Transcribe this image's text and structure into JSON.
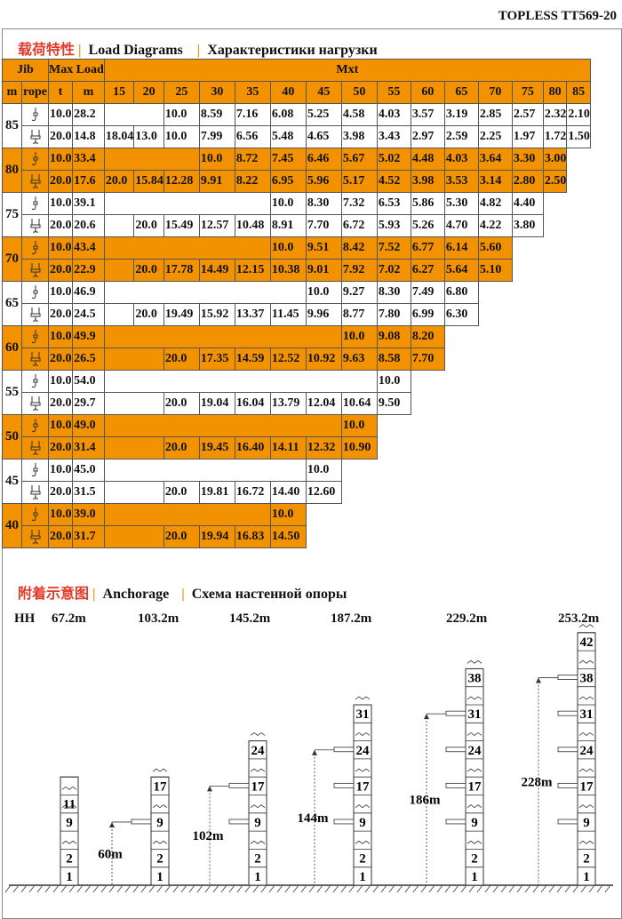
{
  "model": "TOPLESS TT569-20",
  "load": {
    "title_cn": "载荷特性",
    "title_en": "Load Diagrams",
    "title_ru": "Характеристики нагрузки"
  },
  "table": {
    "h_jib": "Jib",
    "h_maxload": "Max Load",
    "h_mxt": "Mxt",
    "h_m": "m",
    "h_rope": "rope",
    "h_t": "t",
    "h_m2": "m",
    "radii": [
      "15",
      "20",
      "25",
      "30",
      "35",
      "40",
      "45",
      "50",
      "55",
      "60",
      "65",
      "70",
      "75",
      "80",
      "85"
    ],
    "groups": [
      {
        "jib": "85",
        "rows": [
          {
            "t": "10.0",
            "m": "28.2",
            "vals": [
              "",
              "",
              "10.0",
              "8.59",
              "7.16",
              "6.08",
              "5.25",
              "4.58",
              "4.03",
              "3.57",
              "3.19",
              "2.85",
              "2.57",
              "2.32",
              "2.10"
            ]
          },
          {
            "t": "20.0",
            "m": "14.8",
            "vals": [
              "18.04",
              "13.0",
              "10.0",
              "7.99",
              "6.56",
              "5.48",
              "4.65",
              "3.98",
              "3.43",
              "2.97",
              "2.59",
              "2.25",
              "1.97",
              "1.72",
              "1.50"
            ]
          }
        ]
      },
      {
        "jib": "80",
        "rows": [
          {
            "t": "10.0",
            "m": "33.4",
            "vals": [
              "",
              "",
              "",
              "10.0",
              "8.72",
              "7.45",
              "6.46",
              "5.67",
              "5.02",
              "4.48",
              "4.03",
              "3.64",
              "3.30",
              "3.00"
            ]
          },
          {
            "t": "20.0",
            "m": "17.6",
            "vals": [
              "20.0",
              "15.84",
              "12.28",
              "9.91",
              "8.22",
              "6.95",
              "5.96",
              "5.17",
              "4.52",
              "3.98",
              "3.53",
              "3.14",
              "2.80",
              "2.50"
            ]
          }
        ]
      },
      {
        "jib": "75",
        "rows": [
          {
            "t": "10.0",
            "m": "39.1",
            "vals": [
              "",
              "",
              "",
              "",
              "",
              "10.0",
              "8.30",
              "7.32",
              "6.53",
              "5.86",
              "5.30",
              "4.82",
              "4.40"
            ]
          },
          {
            "t": "20.0",
            "m": "20.6",
            "vals": [
              "",
              "20.0",
              "15.49",
              "12.57",
              "10.48",
              "8.91",
              "7.70",
              "6.72",
              "5.93",
              "5.26",
              "4.70",
              "4.22",
              "3.80"
            ]
          }
        ]
      },
      {
        "jib": "70",
        "rows": [
          {
            "t": "10.0",
            "m": "43.4",
            "vals": [
              "",
              "",
              "",
              "",
              "",
              "10.0",
              "9.51",
              "8.42",
              "7.52",
              "6.77",
              "6.14",
              "5.60"
            ]
          },
          {
            "t": "20.0",
            "m": "22.9",
            "vals": [
              "",
              "20.0",
              "17.78",
              "14.49",
              "12.15",
              "10.38",
              "9.01",
              "7.92",
              "7.02",
              "6.27",
              "5.64",
              "5.10"
            ]
          }
        ]
      },
      {
        "jib": "65",
        "rows": [
          {
            "t": "10.0",
            "m": "46.9",
            "vals": [
              "",
              "",
              "",
              "",
              "",
              "",
              "10.0",
              "9.27",
              "8.30",
              "7.49",
              "6.80"
            ]
          },
          {
            "t": "20.0",
            "m": "24.5",
            "vals": [
              "",
              "20.0",
              "19.49",
              "15.92",
              "13.37",
              "11.45",
              "9.96",
              "8.77",
              "7.80",
              "6.99",
              "6.30"
            ]
          }
        ]
      },
      {
        "jib": "60",
        "rows": [
          {
            "t": "10.0",
            "m": "49.9",
            "vals": [
              "",
              "",
              "",
              "",
              "",
              "",
              "",
              "10.0",
              "9.08",
              "8.20"
            ]
          },
          {
            "t": "20.0",
            "m": "26.5",
            "vals": [
              "",
              "",
              "20.0",
              "17.35",
              "14.59",
              "12.52",
              "10.92",
              "9.63",
              "8.58",
              "7.70"
            ]
          }
        ]
      },
      {
        "jib": "55",
        "rows": [
          {
            "t": "10.0",
            "m": "54.0",
            "vals": [
              "",
              "",
              "",
              "",
              "",
              "",
              "",
              "",
              "10.0"
            ]
          },
          {
            "t": "20.0",
            "m": "29.7",
            "vals": [
              "",
              "",
              "20.0",
              "19.04",
              "16.04",
              "13.79",
              "12.04",
              "10.64",
              "9.50"
            ]
          }
        ]
      },
      {
        "jib": "50",
        "rows": [
          {
            "t": "10.0",
            "m": "49.0",
            "vals": [
              "",
              "",
              "",
              "",
              "",
              "",
              "",
              "10.0"
            ]
          },
          {
            "t": "20.0",
            "m": "31.4",
            "vals": [
              "",
              "",
              "20.0",
              "19.45",
              "16.40",
              "14.11",
              "12.32",
              "10.90"
            ]
          }
        ]
      },
      {
        "jib": "45",
        "rows": [
          {
            "t": "10.0",
            "m": "45.0",
            "vals": [
              "",
              "",
              "",
              "",
              "",
              "",
              "10.0"
            ]
          },
          {
            "t": "20.0",
            "m": "31.5",
            "vals": [
              "",
              "",
              "20.0",
              "19.81",
              "16.72",
              "14.40",
              "12.60"
            ]
          }
        ]
      },
      {
        "jib": "40",
        "rows": [
          {
            "t": "10.0",
            "m": "39.0",
            "vals": [
              "",
              "",
              "",
              "",
              "",
              "10.0"
            ]
          },
          {
            "t": "20.0",
            "m": "31.7",
            "vals": [
              "",
              "",
              "20.0",
              "19.94",
              "16.83",
              "14.50"
            ]
          }
        ]
      }
    ]
  },
  "anchorage": {
    "title_cn": "附着示意图",
    "title_en": "Anchorage",
    "title_ru": "Схема настенной опоры",
    "hh_label": "HH",
    "heights": [
      "67.2m",
      "103.2m",
      "145.2m",
      "187.2m",
      "229.2m",
      "253.2m"
    ],
    "anchor_heights": [
      "60m",
      "102m",
      "144m",
      "186m",
      "228m"
    ],
    "towers": [
      {
        "labels": [
          "1",
          "2",
          "9",
          "11"
        ]
      },
      {
        "labels": [
          "1",
          "2",
          "9",
          "17"
        ]
      },
      {
        "labels": [
          "1",
          "2",
          "9",
          "17",
          "24"
        ]
      },
      {
        "labels": [
          "1",
          "2",
          "9",
          "17",
          "24",
          "31"
        ]
      },
      {
        "labels": [
          "1",
          "2",
          "9",
          "17",
          "24",
          "31",
          "38"
        ]
      },
      {
        "labels": [
          "1",
          "2",
          "9",
          "17",
          "24",
          "31",
          "38",
          "42"
        ]
      }
    ]
  }
}
